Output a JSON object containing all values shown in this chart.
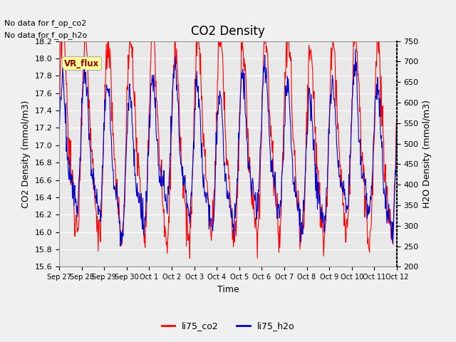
{
  "title": "CO2 Density",
  "xlabel": "Time",
  "ylabel_left": "CO2 Density (mmol/m3)",
  "ylabel_right": "H2O Density (mmol/m3)",
  "ylim_left": [
    15.6,
    18.2
  ],
  "ylim_right": [
    200,
    750
  ],
  "yticks_left": [
    15.6,
    15.8,
    16.0,
    16.2,
    16.4,
    16.6,
    16.8,
    17.0,
    17.2,
    17.4,
    17.6,
    17.8,
    18.0,
    18.2
  ],
  "yticks_right": [
    200,
    250,
    300,
    350,
    400,
    450,
    500,
    550,
    600,
    650,
    700,
    750
  ],
  "xtick_labels": [
    "Sep 27",
    "Sep 28",
    "Sep 29",
    "Sep 30",
    "Oct 1",
    "Oct 2",
    "Oct 3",
    "Oct 4",
    "Oct 5",
    "Oct 6",
    "Oct 7",
    "Oct 8",
    "Oct 9",
    "Oct 10",
    "Oct 11",
    "Oct 12"
  ],
  "annotations": [
    "No data for f_op_co2",
    "No data for f_op_h2o"
  ],
  "vr_flux_label": "VR_flux",
  "background_color": "#f0f0f0",
  "plot_bg_color": "#e8e8e8",
  "grid_color": "#ffffff",
  "color_co2": "#ff0000",
  "color_h2o": "#0000cc",
  "legend_co2": "li75_co2",
  "legend_h2o": "li75_h2o",
  "n_days": 15,
  "pts_per_day": 48,
  "co2_seed": 0,
  "h2o_seed": 0
}
